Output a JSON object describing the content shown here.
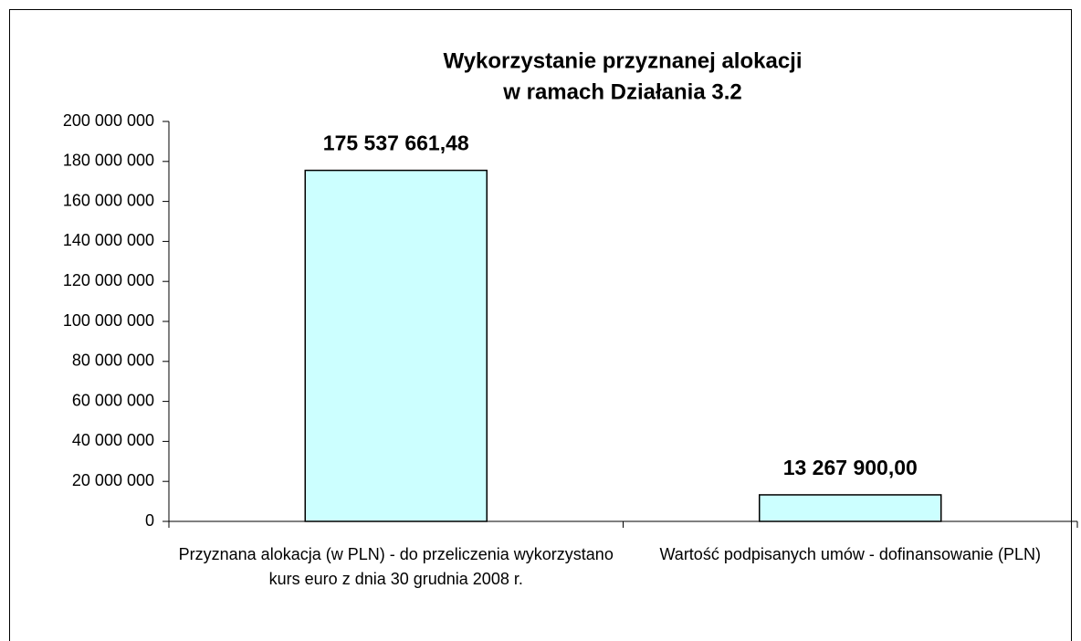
{
  "chart_data": {
    "type": "bar",
    "title": [
      "Wykorzystanie przyznanej alokacji",
      "w ramach Działania 3.2"
    ],
    "categories": [
      "Przyznana alokacja (w PLN) - do przeliczenia wykorzystano kurs euro z dnia 30 grudnia 2008 r.",
      "Wartość podpisanych umów - dofinansowanie (PLN)"
    ],
    "values": [
      175537661.48,
      13267900.0
    ],
    "value_labels": [
      "175 537 661,48",
      "13 267 900,00"
    ],
    "color": "#ccffff",
    "ylim": [
      0,
      200000000
    ],
    "yticks": [
      0,
      {
        "value": 20000000,
        "label": "20 000 000"
      },
      {
        "value": 40000000,
        "label": "40 000 000"
      },
      {
        "value": 60000000,
        "label": "60 000 000"
      },
      {
        "value": 80000000,
        "label": "80 000 000"
      },
      {
        "value": 100000000,
        "label": "100 000 000"
      },
      {
        "value": 120000000,
        "label": "120 000 000"
      },
      {
        "value": 140000000,
        "label": "140 000 000"
      },
      {
        "value": 160000000,
        "label": "160 000 000"
      },
      {
        "value": 180000000,
        "label": "180 000 000"
      },
      {
        "value": 200000000,
        "label": "200 000 000"
      }
    ],
    "grid": false
  }
}
